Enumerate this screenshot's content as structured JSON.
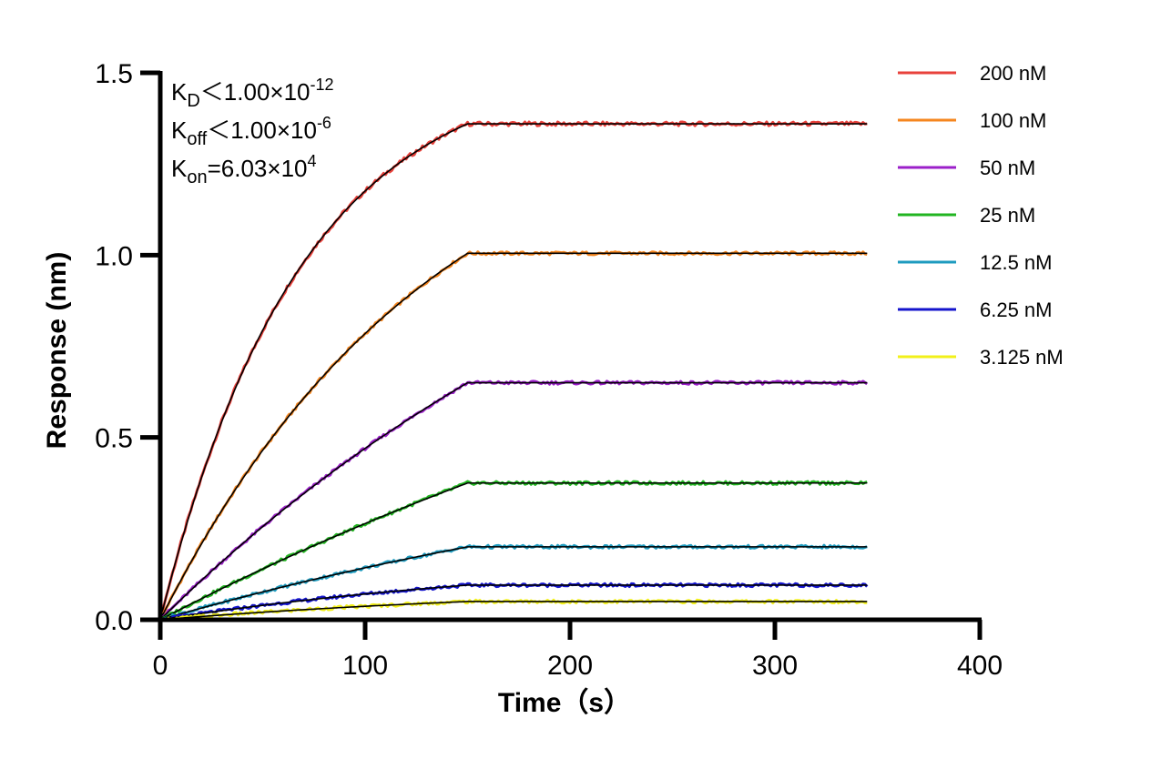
{
  "chart_data": {
    "type": "line",
    "xlabel": "Time（s）",
    "ylabel": "Response (nm)",
    "xlim": [
      0,
      400
    ],
    "ylim": [
      0,
      1.5
    ],
    "x_ticks": [
      "0",
      "100",
      "200",
      "300",
      "400"
    ],
    "y_ticks": [
      "0.0",
      "0.5",
      "1.0",
      "1.5"
    ],
    "x_tick_values": [
      0,
      100,
      200,
      300,
      400
    ],
    "y_tick_values": [
      0,
      0.5,
      1.0,
      1.5
    ],
    "grid": false,
    "legend_position": "top-right",
    "association_end_s": 150,
    "end_s": 345,
    "fit_color": "#000000",
    "annotations": {
      "kd": {
        "base": "K",
        "sub": "D",
        "rest": "＜1.00×10",
        "sup": "-12"
      },
      "koff": {
        "base": "K",
        "sub": "off",
        "rest": "＜1.00×10",
        "sup": "-6"
      },
      "kon": {
        "base": "K",
        "sub": "on",
        "rest": "=6.03×10",
        "sup": "4"
      }
    },
    "series": [
      {
        "name": "200 nM",
        "color": "#e8413b",
        "plateau": 1.36,
        "x": [
          0,
          30,
          60,
          90,
          120,
          150,
          345
        ],
        "y": [
          0,
          0.53,
          0.88,
          1.12,
          1.27,
          1.36,
          1.36
        ]
      },
      {
        "name": "100 nM",
        "color": "#f5861f",
        "plateau": 1.005,
        "x": [
          0,
          30,
          60,
          90,
          120,
          150,
          345
        ],
        "y": [
          0,
          0.29,
          0.53,
          0.73,
          0.88,
          1.005,
          1.005
        ]
      },
      {
        "name": "50 nM",
        "color": "#9b1fc9",
        "plateau": 0.65,
        "x": [
          0,
          30,
          60,
          90,
          120,
          150,
          345
        ],
        "y": [
          0,
          0.16,
          0.3,
          0.43,
          0.54,
          0.65,
          0.65
        ]
      },
      {
        "name": "25 nM",
        "color": "#22b521",
        "plateau": 0.375,
        "x": [
          0,
          30,
          60,
          90,
          120,
          150,
          345
        ],
        "y": [
          0,
          0.085,
          0.165,
          0.24,
          0.31,
          0.375,
          0.375
        ]
      },
      {
        "name": "12.5 nM",
        "color": "#1e9bbf",
        "plateau": 0.2,
        "x": [
          0,
          30,
          60,
          90,
          120,
          150,
          345
        ],
        "y": [
          0,
          0.045,
          0.09,
          0.13,
          0.165,
          0.2,
          0.2
        ]
      },
      {
        "name": "6.25 nM",
        "color": "#1414cc",
        "plateau": 0.095,
        "x": [
          0,
          30,
          60,
          90,
          120,
          150,
          345
        ],
        "y": [
          0,
          0.022,
          0.045,
          0.065,
          0.08,
          0.095,
          0.095
        ]
      },
      {
        "name": "3.125 nM",
        "color": "#f2f01a",
        "plateau": 0.05,
        "x": [
          0,
          30,
          60,
          90,
          120,
          150,
          345
        ],
        "y": [
          0,
          0.012,
          0.024,
          0.034,
          0.043,
          0.05,
          0.05
        ]
      }
    ]
  }
}
